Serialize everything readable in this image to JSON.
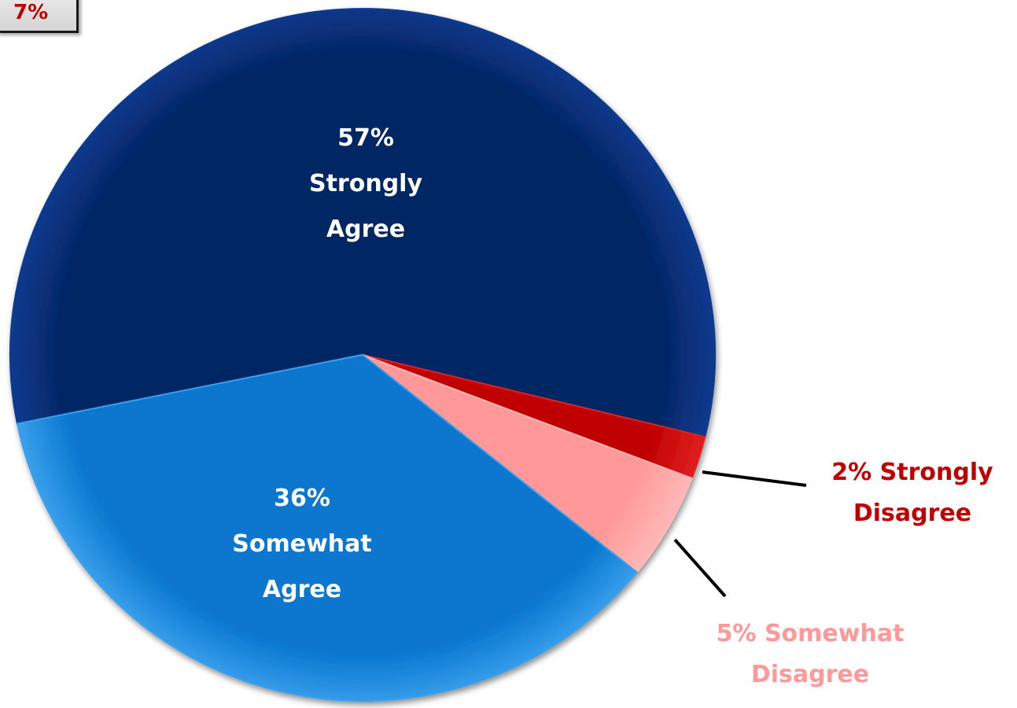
{
  "total_badge": "7%",
  "chart_data": {
    "type": "pie",
    "title": "",
    "slices": [
      {
        "percent_label": "57%",
        "name_lines": [
          "Strongly",
          "Agree"
        ],
        "value": 57,
        "color": "#052564",
        "highlight": "#0a3a8e",
        "label_color": "#ffffff"
      },
      {
        "percent_label": "2%",
        "name_lines": [
          "Strongly",
          "Disagree"
        ],
        "value": 2,
        "color": "#c00000",
        "highlight": "#e02020",
        "label_color": "#c00000"
      },
      {
        "percent_label": "5%",
        "name_lines": [
          "Somewhat",
          "Disagree"
        ],
        "value": 5,
        "color": "#ff9999",
        "highlight": "#ffb8b8",
        "label_color": "#ff9999"
      },
      {
        "percent_label": "36%",
        "name_lines": [
          "Somewhat",
          "Agree"
        ],
        "value": 36,
        "color": "#0877cf",
        "highlight": "#3aa0ec",
        "label_color": "#ffffff"
      }
    ],
    "start_angle_deg": 191.5,
    "legend": "none"
  }
}
